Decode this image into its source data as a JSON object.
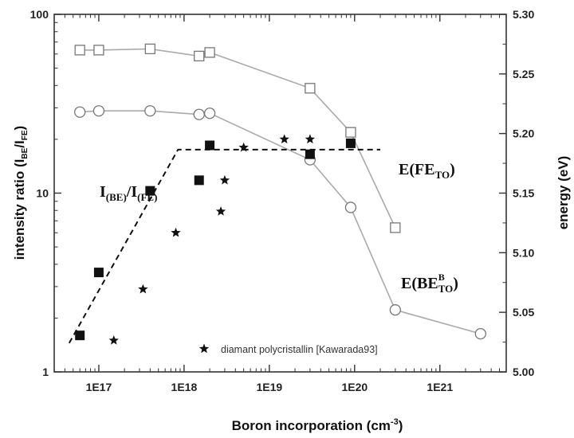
{
  "chart_data": {
    "type": "scatter",
    "xlabel": "Boron incorporation (cm",
    "xlabel_sup": "-3",
    "xlabel_tail": ")",
    "ylabel_left_prefix": "intensity ratio (I",
    "ylabel_left_sub1": "BE",
    "ylabel_left_mid": "/I",
    "ylabel_left_sub2": "FE",
    "ylabel_left_tail": ")",
    "ylabel_right": "energy (eV)",
    "x_scale": "log",
    "x_range": [
      3e+16,
      6e+21
    ],
    "y_left_scale": "log",
    "y_left_range": [
      1,
      100
    ],
    "y_right_range": [
      5.0,
      5.3
    ],
    "x_ticks": [
      {
        "value": 1e+17,
        "label": "1E17"
      },
      {
        "value": 1e+18,
        "label": "1E18"
      },
      {
        "value": 1e+19,
        "label": "1E19"
      },
      {
        "value": 1e+20,
        "label": "1E20"
      },
      {
        "value": 1e+21,
        "label": "1E21"
      }
    ],
    "y_left_ticks": [
      {
        "value": 1,
        "label": "1"
      },
      {
        "value": 10,
        "label": "10"
      },
      {
        "value": 100,
        "label": "100"
      }
    ],
    "y_right_ticks": [
      {
        "value": 5.0,
        "label": "5.00"
      },
      {
        "value": 5.05,
        "label": "5.05"
      },
      {
        "value": 5.1,
        "label": "5.10"
      },
      {
        "value": 5.15,
        "label": "5.15"
      },
      {
        "value": 5.2,
        "label": "5.20"
      },
      {
        "value": 5.25,
        "label": "5.25"
      },
      {
        "value": 5.3,
        "label": "5.30"
      }
    ],
    "series": [
      {
        "name": "E(FE_TO)",
        "axis": "right",
        "marker": "open-square",
        "line": true,
        "color": "#aaaaaa",
        "x": [
          6e+16,
          1e+17,
          4e+17,
          1.5e+18,
          2e+18,
          3e+19,
          9e+19,
          3e+20
        ],
        "y": [
          5.27,
          5.27,
          5.271,
          5.265,
          5.268,
          5.238,
          5.201,
          5.121
        ]
      },
      {
        "name": "E(BE^B_TO)",
        "axis": "right",
        "marker": "open-circle",
        "line": true,
        "color": "#aaaaaa",
        "x": [
          6e+16,
          1e+17,
          4e+17,
          1.5e+18,
          2e+18,
          3e+19,
          9e+19,
          3e+20,
          3e+21
        ],
        "y": [
          5.218,
          5.219,
          5.219,
          5.216,
          5.217,
          5.178,
          5.138,
          5.052,
          5.032
        ]
      },
      {
        "name": "I(BE)/I(FE)",
        "axis": "left",
        "marker": "filled-square",
        "line": false,
        "color": "#111111",
        "x": [
          6e+16,
          1e+17,
          4e+17,
          1.5e+18,
          2e+18,
          3e+19,
          9e+19
        ],
        "y": [
          1.6,
          3.6,
          10.3,
          11.8,
          18.5,
          16.5,
          19
        ]
      },
      {
        "name": "diamant polycristallin [Kawarada93]",
        "axis": "left",
        "marker": "star",
        "line": false,
        "color": "#111111",
        "x": [
          1.5e+17,
          3.3e+17,
          8e+17,
          2.7e+18,
          3e+18,
          5e+18,
          1.5e+19,
          3e+19
        ],
        "y": [
          1.5,
          2.9,
          6,
          7.9,
          11.8,
          18,
          20,
          20
        ]
      }
    ],
    "fit_line": {
      "style": "dashed",
      "axis": "left",
      "x": [
        4.5e+16,
        8.5e+17,
        2e+20
      ],
      "y": [
        1.45,
        17.5,
        17.5
      ]
    },
    "annotations": {
      "ratio": {
        "main": "I",
        "sub1": "(BE)",
        "mid": "/I",
        "sub2": "(FE)"
      },
      "fe": {
        "main": "E(FE",
        "sub": "TO",
        "tail": ")"
      },
      "be": {
        "main": "E(BE",
        "sup": "B",
        "sub": "TO",
        "tail": ")"
      }
    },
    "legend": {
      "entry": "diamant polycristallin [Kawarada93]",
      "position": "bottom-right"
    },
    "grid": false
  }
}
